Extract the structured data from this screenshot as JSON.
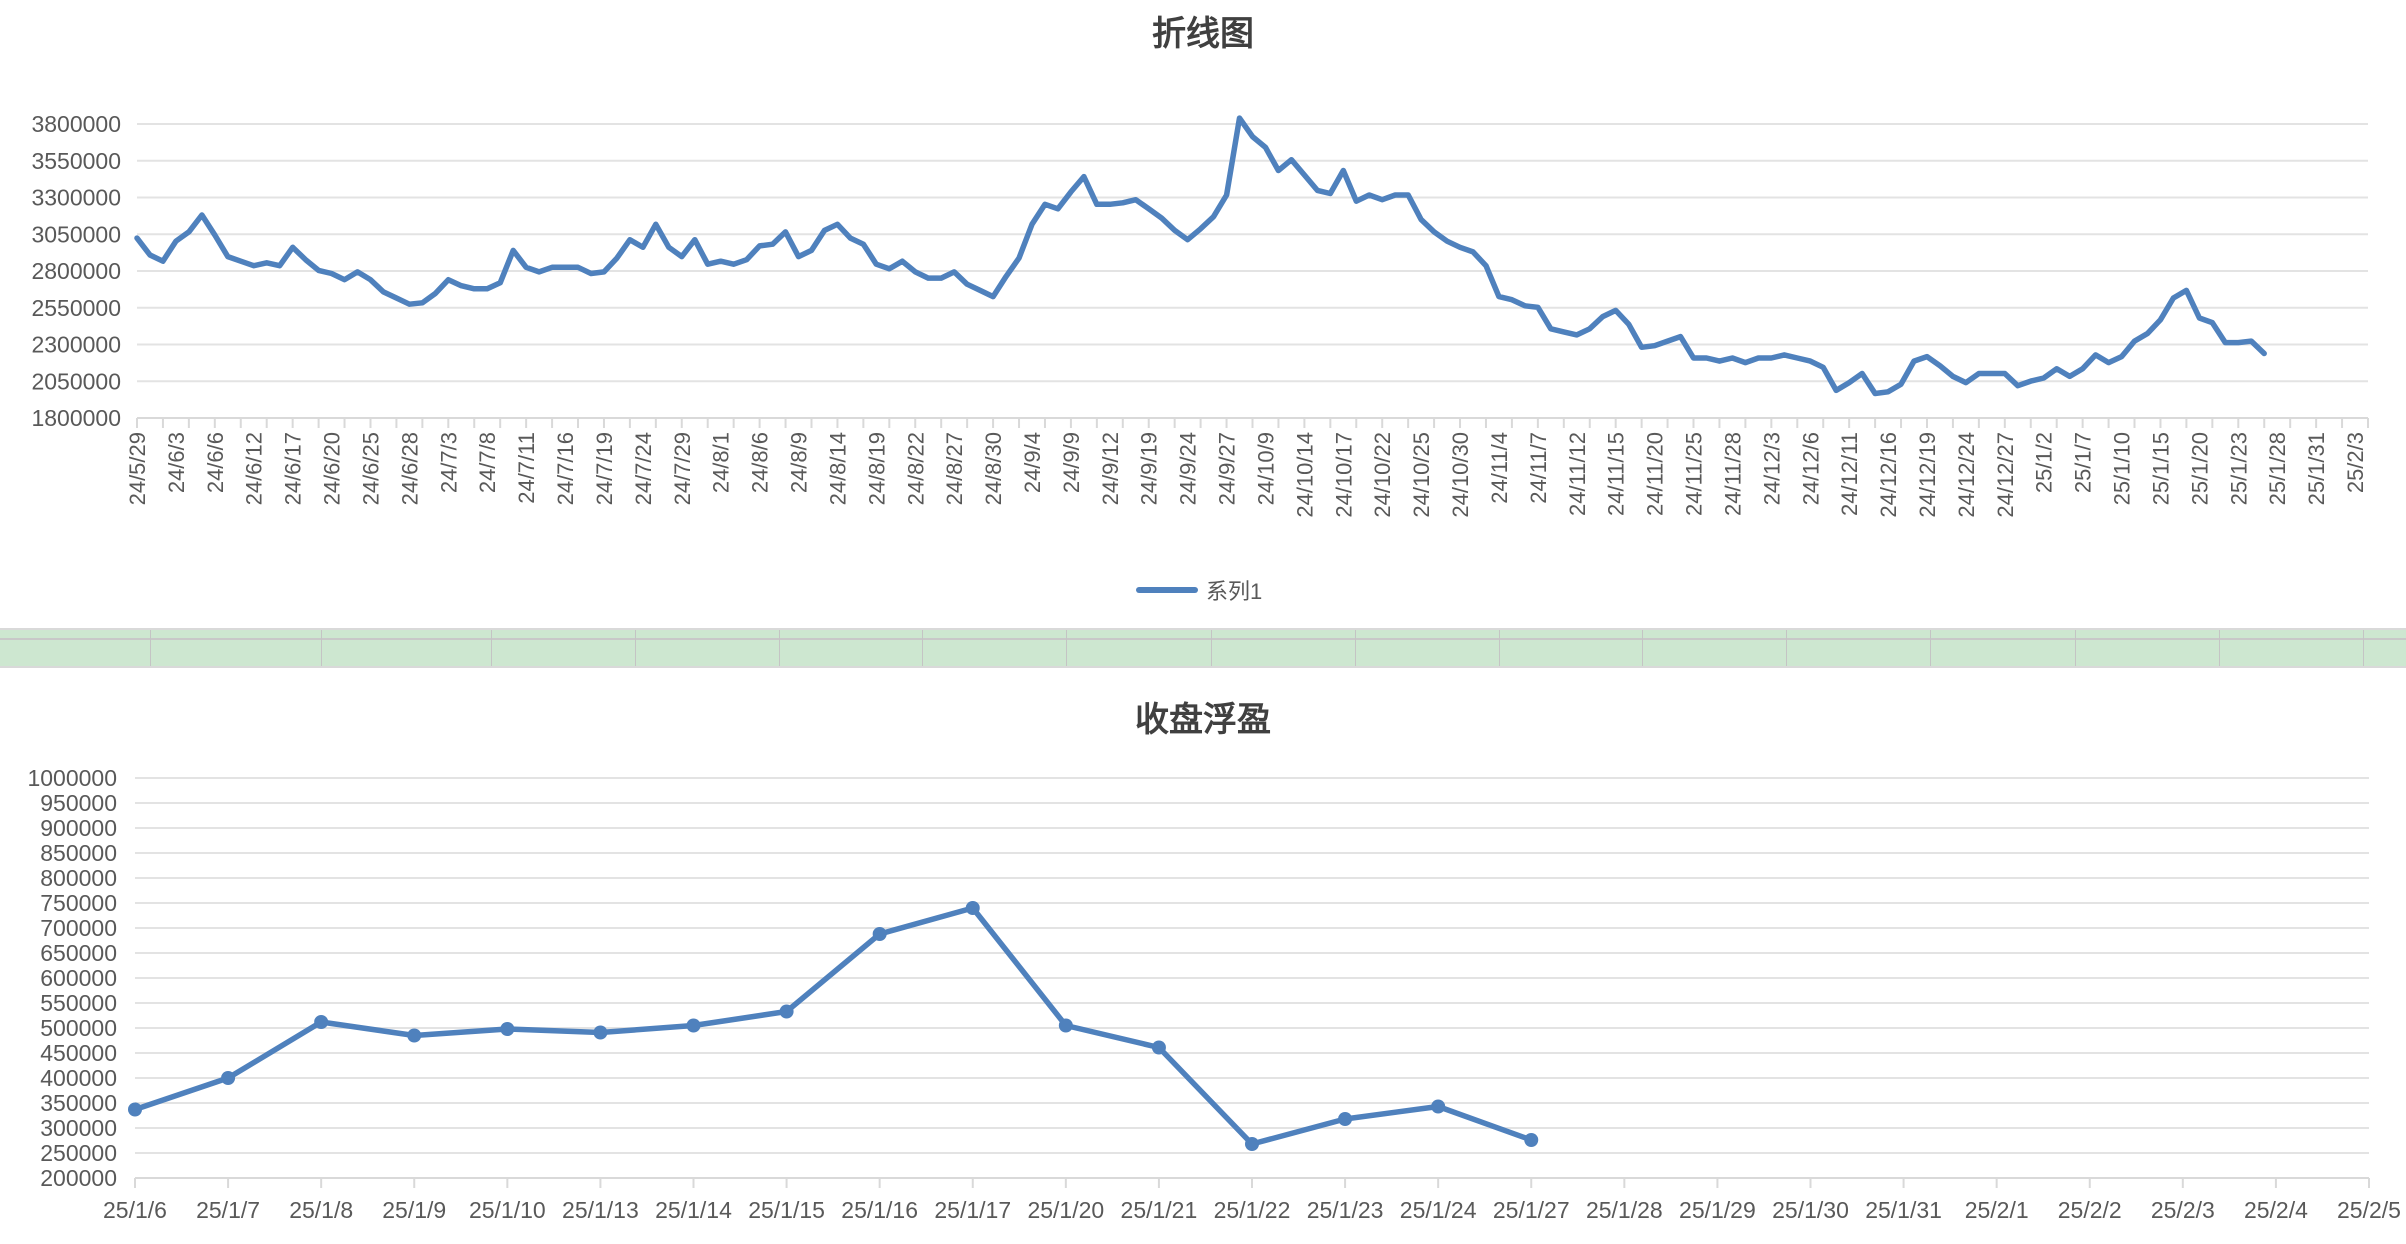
{
  "colors": {
    "series": "#4f81bd",
    "grid": "#e3e3e3",
    "axis_text": "#595959",
    "title_text": "#404040",
    "band_fill": "#cde7d0"
  },
  "top_chart": {
    "title": "折线图",
    "legend_label": "系列1"
  },
  "bottom_chart": {
    "title": "收盘浮盈"
  },
  "chart_data": [
    {
      "type": "line",
      "title": "折线图",
      "xlabel": "",
      "ylabel": "",
      "ylim": [
        1800000,
        3800000
      ],
      "yticks": [
        1800000,
        2050000,
        2300000,
        2550000,
        2800000,
        3050000,
        3300000,
        3550000,
        3800000
      ],
      "grid": true,
      "legend_position": "bottom",
      "x_tick_labels": [
        "24/5/29",
        "24/6/3",
        "24/6/6",
        "24/6/12",
        "24/6/17",
        "24/6/20",
        "24/6/25",
        "24/6/28",
        "24/7/3",
        "24/7/8",
        "24/7/11",
        "24/7/16",
        "24/7/19",
        "24/7/24",
        "24/7/29",
        "24/8/1",
        "24/8/6",
        "24/8/9",
        "24/8/14",
        "24/8/19",
        "24/8/22",
        "24/8/27",
        "24/8/30",
        "24/9/4",
        "24/9/9",
        "24/9/12",
        "24/9/19",
        "24/9/24",
        "24/9/27",
        "24/10/9",
        "24/10/14",
        "24/10/17",
        "24/10/22",
        "24/10/25",
        "24/10/30",
        "24/11/4",
        "24/11/7",
        "24/11/12",
        "24/11/15",
        "24/11/20",
        "24/11/25",
        "24/11/28",
        "24/12/3",
        "24/12/6",
        "24/12/11",
        "24/12/16",
        "24/12/19",
        "24/12/24",
        "24/12/27",
        "25/1/2",
        "25/1/7",
        "25/1/10",
        "25/1/15",
        "25/1/20",
        "25/1/23",
        "25/1/28",
        "25/1/31",
        "25/2/3"
      ],
      "points_per_label": 3,
      "total_slots": 173,
      "series": [
        {
          "name": "系列1",
          "values": [
            3024000,
            2909000,
            2867000,
            3003000,
            3066000,
            3181000,
            3045000,
            2898000,
            2867000,
            2836000,
            2856000,
            2836000,
            2961000,
            2877000,
            2804000,
            2783000,
            2741000,
            2794000,
            2741000,
            2658000,
            2616000,
            2574000,
            2584000,
            2647000,
            2741000,
            2700000,
            2679000,
            2679000,
            2720000,
            2940000,
            2825000,
            2794000,
            2825000,
            2825000,
            2825000,
            2783000,
            2794000,
            2888000,
            3013000,
            2961000,
            3118000,
            2961000,
            2898000,
            3013000,
            2846000,
            2867000,
            2846000,
            2877000,
            2971000,
            2982000,
            3066000,
            2898000,
            2940000,
            3076000,
            3118000,
            3024000,
            2982000,
            2846000,
            2815000,
            2867000,
            2794000,
            2752000,
            2752000,
            2794000,
            2710000,
            2668000,
            2626000,
            2763000,
            2888000,
            3118000,
            3254000,
            3223000,
            3338000,
            3442000,
            3254000,
            3254000,
            3264000,
            3285000,
            3223000,
            3160000,
            3076000,
            3013000,
            3087000,
            3170000,
            3317000,
            3840000,
            3714000,
            3641000,
            3484000,
            3557000,
            3453000,
            3348000,
            3327000,
            3484000,
            3275000,
            3317000,
            3285000,
            3317000,
            3317000,
            3150000,
            3066000,
            3003000,
            2961000,
            2930000,
            2836000,
            2626000,
            2605000,
            2563000,
            2553000,
            2407000,
            2386000,
            2365000,
            2407000,
            2490000,
            2532000,
            2438000,
            2281000,
            2292000,
            2323000,
            2354000,
            2208000,
            2208000,
            2187000,
            2208000,
            2177000,
            2208000,
            2208000,
            2229000,
            2208000,
            2187000,
            2145000,
            1988000,
            2041000,
            2103000,
            1967000,
            1978000,
            2030000,
            2187000,
            2218000,
            2156000,
            2083000,
            2041000,
            2103000,
            2103000,
            2103000,
            2020000,
            2051000,
            2072000,
            2135000,
            2083000,
            2135000,
            2229000,
            2177000,
            2218000,
            2323000,
            2375000,
            2469000,
            2616000,
            2668000,
            2480000,
            2449000,
            2313000,
            2313000,
            2323000,
            2239000
          ]
        }
      ]
    },
    {
      "type": "line",
      "title": "收盘浮盈",
      "xlabel": "",
      "ylabel": "",
      "ylim": [
        200000,
        1000000
      ],
      "yticks": [
        200000,
        250000,
        300000,
        350000,
        400000,
        450000,
        500000,
        550000,
        600000,
        650000,
        700000,
        750000,
        800000,
        850000,
        900000,
        950000,
        1000000
      ],
      "grid": true,
      "markers": true,
      "categories": [
        "25/1/6",
        "25/1/7",
        "25/1/8",
        "25/1/9",
        "25/1/10",
        "25/1/13",
        "25/1/14",
        "25/1/15",
        "25/1/16",
        "25/1/17",
        "25/1/20",
        "25/1/21",
        "25/1/22",
        "25/1/23",
        "25/1/24",
        "25/1/27",
        "25/1/28",
        "25/1/29",
        "25/1/30",
        "25/1/31",
        "25/2/1",
        "25/2/2",
        "25/2/3",
        "25/2/4",
        "25/2/5"
      ],
      "series": [
        {
          "name": "收盘浮盈",
          "values": [
            337000,
            400000,
            512000,
            485000,
            498000,
            491000,
            505000,
            533000,
            688000,
            740000,
            505000,
            461000,
            268000,
            318000,
            343000,
            276000,
            null,
            null,
            null,
            null,
            null,
            null,
            null,
            null,
            null
          ]
        }
      ]
    }
  ]
}
